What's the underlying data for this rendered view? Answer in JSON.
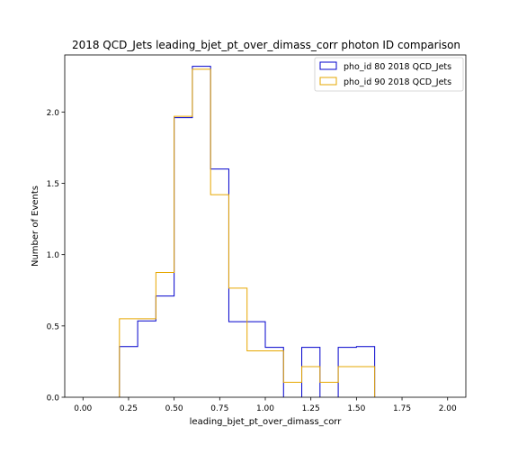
{
  "chart_data": {
    "type": "histogram-step",
    "title": "2018 QCD_Jets leading_bjet_pt_over_dimass_corr photon ID comparison",
    "xlabel": "leading_bjet_pt_over_dimass_corr",
    "ylabel": "Number of Events",
    "xlim": [
      -0.1,
      2.1
    ],
    "ylim": [
      0,
      2.4
    ],
    "xticks": [
      0.0,
      0.25,
      0.5,
      0.75,
      1.0,
      1.25,
      1.5,
      1.75,
      2.0
    ],
    "xtick_labels": [
      "0.00",
      "0.25",
      "0.50",
      "0.75",
      "1.00",
      "1.25",
      "1.50",
      "1.75",
      "2.00"
    ],
    "yticks": [
      0.0,
      0.5,
      1.0,
      1.5,
      2.0
    ],
    "ytick_labels": [
      "0.0",
      "0.5",
      "1.0",
      "1.5",
      "2.0"
    ],
    "bin_edges": [
      0.0,
      0.1,
      0.2,
      0.3,
      0.4,
      0.5,
      0.6,
      0.7,
      0.8,
      0.9,
      1.0,
      1.1,
      1.2,
      1.3,
      1.4,
      1.5,
      1.6,
      1.7,
      1.8,
      1.9,
      2.0
    ],
    "legend_position": "top-right",
    "grid": false,
    "series": [
      {
        "name": "pho_id 80 2018 QCD_Jets",
        "color": "#0000cc",
        "values": [
          0,
          0,
          0.355,
          0.535,
          0.71,
          1.96,
          2.32,
          1.6,
          0.53,
          0.53,
          0.35,
          0.0,
          0.35,
          0.0,
          0.35,
          0.355,
          0,
          0,
          0,
          0
        ]
      },
      {
        "name": "pho_id 90 2018 QCD_Jets",
        "color": "#e6a700",
        "values": [
          0,
          0,
          0.55,
          0.55,
          0.875,
          1.97,
          2.3,
          1.42,
          0.765,
          0.325,
          0.325,
          0.105,
          0.215,
          0.105,
          0.215,
          0.215,
          0,
          0,
          0,
          0
        ]
      }
    ]
  }
}
